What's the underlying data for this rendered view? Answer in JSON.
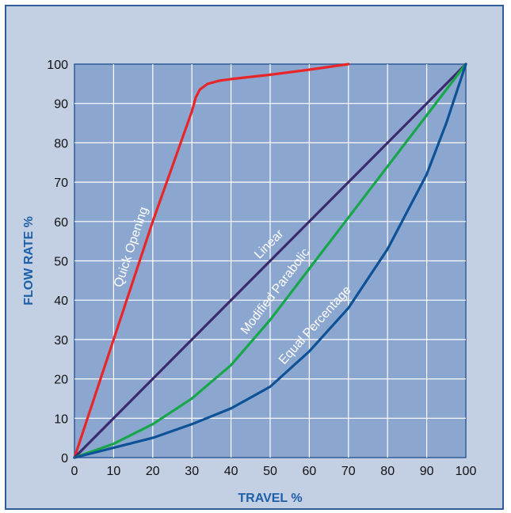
{
  "chart_data": {
    "type": "line",
    "xlabel": "TRAVEL %",
    "ylabel": "FLOW RATE %",
    "xlim": [
      0,
      100
    ],
    "ylim": [
      0,
      100
    ],
    "x_ticks": [
      0,
      10,
      20,
      30,
      40,
      50,
      60,
      70,
      80,
      90,
      100
    ],
    "y_ticks": [
      0,
      10,
      20,
      30,
      40,
      50,
      60,
      70,
      80,
      90,
      100
    ],
    "grid": true,
    "colors": {
      "background": "#c3d0e3",
      "plot_area": "#8ca7cf",
      "grid": "#ffffff",
      "frame": "#2f5c97"
    },
    "series": [
      {
        "name": "Quick Opening",
        "color": "#e8262a",
        "x": [
          0,
          10,
          20,
          30,
          31,
          32,
          34,
          37,
          40,
          50,
          60,
          70
        ],
        "y": [
          0,
          30,
          60,
          88,
          91.5,
          93.5,
          95,
          95.8,
          96.2,
          97.3,
          98.6,
          100
        ]
      },
      {
        "name": "Linear",
        "color": "#3b2a6e",
        "x": [
          0,
          100
        ],
        "y": [
          0,
          100
        ]
      },
      {
        "name": "Modified Parabolic",
        "color": "#17a64a",
        "x": [
          0,
          10,
          20,
          30,
          40,
          50,
          60,
          70,
          80,
          90,
          100
        ],
        "y": [
          0,
          3.5,
          8.5,
          15,
          23.5,
          35,
          48,
          61,
          74,
          87,
          100
        ]
      },
      {
        "name": "Equal Percentage",
        "color": "#0d5196",
        "x": [
          0,
          10,
          20,
          30,
          40,
          50,
          60,
          70,
          80,
          90,
          95,
          100
        ],
        "y": [
          0,
          2.5,
          5,
          8.5,
          12.5,
          18,
          27,
          38,
          53,
          72,
          85,
          100
        ]
      }
    ]
  }
}
